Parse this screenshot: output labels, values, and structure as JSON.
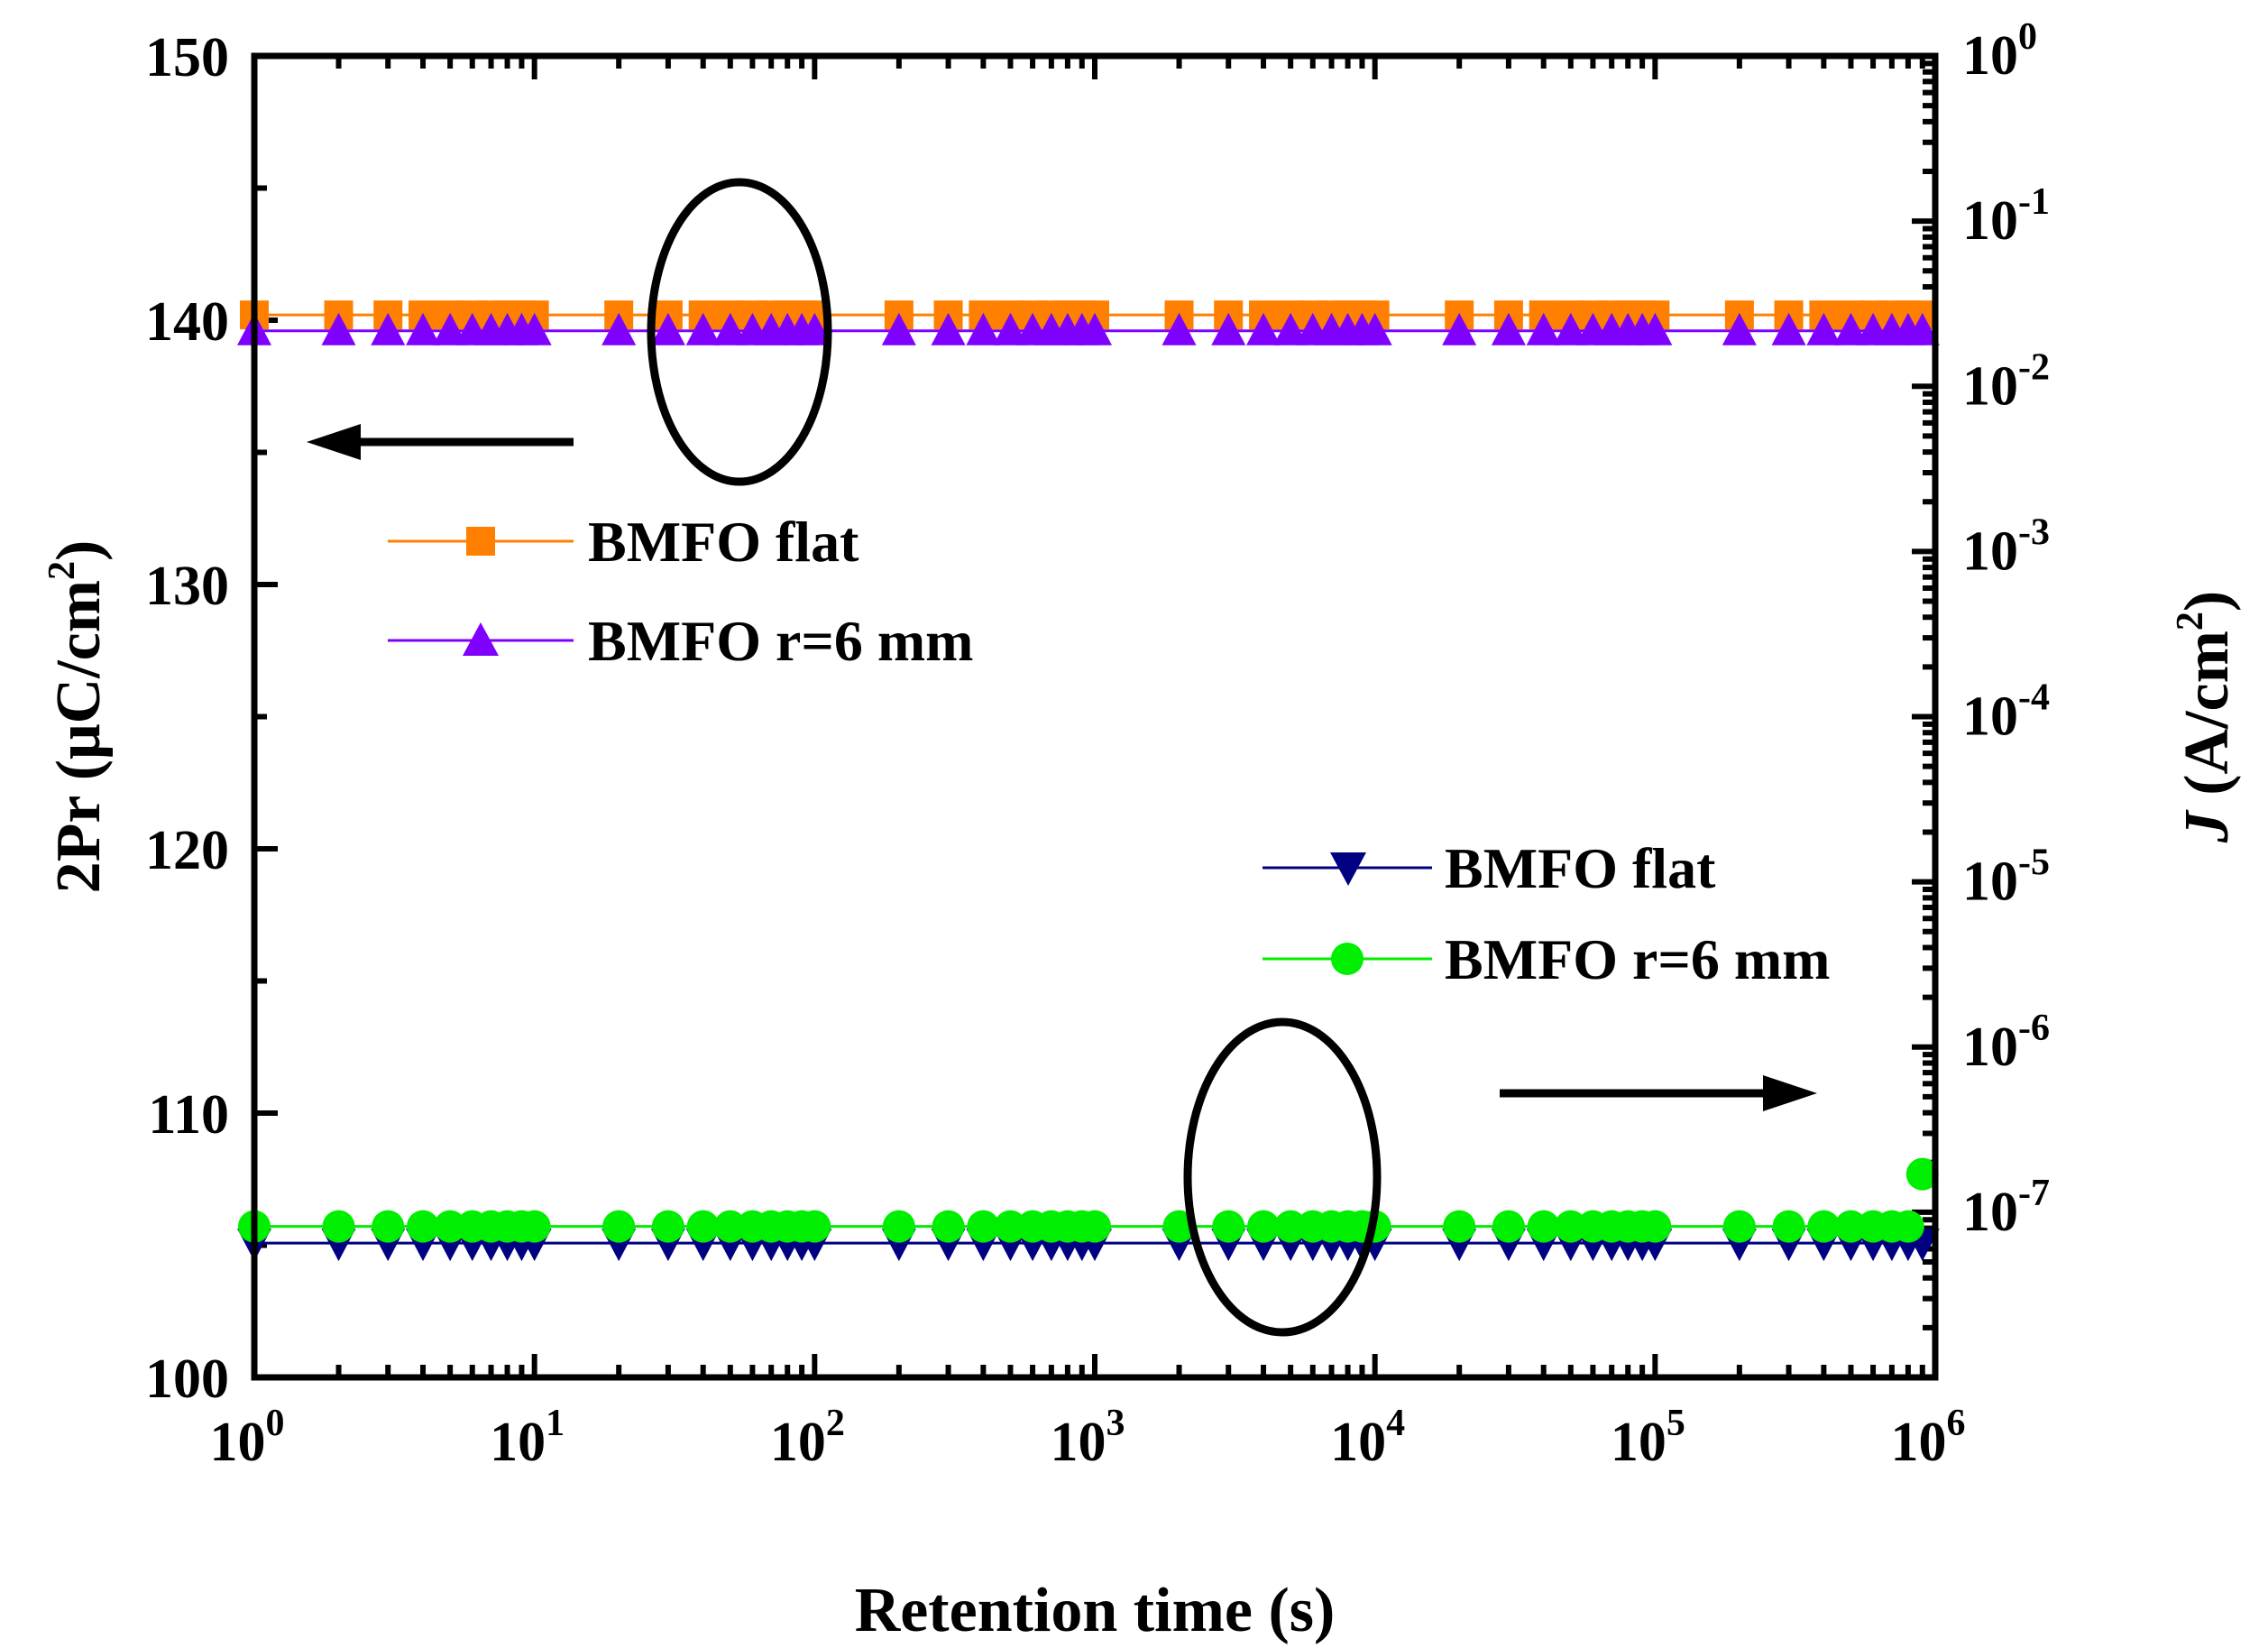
{
  "chart_data": {
    "type": "scatter",
    "x_axis": {
      "title": "Retention time (s)",
      "scale": "log",
      "range": [
        1,
        1000000
      ],
      "tick_labels": [
        {
          "base": "10",
          "exp": "0"
        },
        {
          "base": "10",
          "exp": "1"
        },
        {
          "base": "10",
          "exp": "2"
        },
        {
          "base": "10",
          "exp": "3"
        },
        {
          "base": "10",
          "exp": "4"
        },
        {
          "base": "10",
          "exp": "5"
        },
        {
          "base": "10",
          "exp": "6"
        }
      ]
    },
    "y_left": {
      "title_main": "2Pr (μC/cm",
      "title_sup": "2",
      "title_end": ")",
      "scale": "linear",
      "range": [
        100,
        150
      ],
      "ticks": [
        "100",
        "110",
        "120",
        "130",
        "140",
        "150"
      ]
    },
    "y_right": {
      "title_italic": "J",
      "title_main": " (A/cm",
      "title_sup": "2",
      "title_end": ")",
      "scale": "log",
      "range": [
        1e-08,
        1
      ],
      "tick_labels": [
        {
          "base": "10",
          "exp": "-7"
        },
        {
          "base": "10",
          "exp": "-6"
        },
        {
          "base": "10",
          "exp": "-5"
        },
        {
          "base": "10",
          "exp": "-4"
        },
        {
          "base": "10",
          "exp": "-3"
        },
        {
          "base": "10",
          "exp": "-2"
        },
        {
          "base": "10",
          "exp": "-1"
        },
        {
          "base": "10",
          "exp": "0"
        }
      ]
    },
    "series": [
      {
        "name": "BMFO flat",
        "axis": "left",
        "marker": "square",
        "color": "#ff8000",
        "value": 140.2
      },
      {
        "name": "BMFO r=6 mm",
        "axis": "left",
        "marker": "triangle-up",
        "color": "#8000ff",
        "value": 139.6
      },
      {
        "name": "BMFO flat",
        "axis": "right",
        "marker": "triangle-down",
        "color": "#000080",
        "value": 6.5e-08,
        "last_value": 6.5e-08
      },
      {
        "name": "BMFO r=6 mm",
        "axis": "right",
        "marker": "circle",
        "color": "#00ee00",
        "value": 8.2e-08,
        "last_value": 1.7e-07
      }
    ],
    "x_points": [
      1,
      2,
      3,
      4,
      5,
      6,
      7,
      8,
      9,
      10,
      20,
      30,
      40,
      50,
      60,
      70,
      80,
      90,
      100,
      200,
      300,
      400,
      500,
      600,
      700,
      800,
      900,
      1000,
      2000,
      3000,
      4000,
      5000,
      6000,
      7000,
      8000,
      9000,
      10000,
      20000,
      30000,
      40000,
      50000,
      60000,
      70000,
      80000,
      90000,
      100000,
      200000,
      300000,
      400000,
      500000,
      600000,
      700000,
      800000,
      900000
    ],
    "legend_groups": [
      {
        "placement": "upper-left",
        "items": [
          "BMFO flat",
          "BMFO r=6 mm"
        ]
      },
      {
        "placement": "lower-right",
        "items": [
          "BMFO flat",
          "BMFO r=6 mm"
        ]
      }
    ],
    "annotations": [
      {
        "type": "ellipse",
        "around": "2Pr data near 50 s"
      },
      {
        "type": "arrow",
        "direction": "left",
        "meaning": "2Pr read on left axis"
      },
      {
        "type": "ellipse",
        "around": "J data near 5000 s"
      },
      {
        "type": "arrow",
        "direction": "right",
        "meaning": "J read on right axis"
      }
    ]
  }
}
